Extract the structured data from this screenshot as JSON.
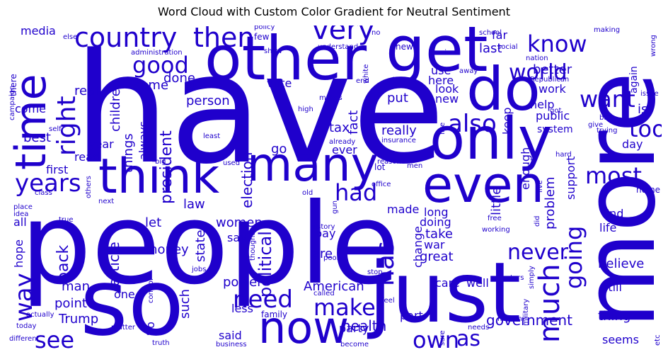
{
  "title": "Word Cloud with Custom Color Gradient for Neutral Sentiment",
  "colors": {
    "word": "#1f00cc",
    "background": "#ffffff",
    "title": "#000000"
  },
  "words": [
    "have",
    "people",
    "more",
    "so",
    "just",
    "other",
    "get",
    "do",
    "only",
    "time",
    "think",
    "many",
    "even",
    "now",
    "country",
    "then",
    "very",
    "know",
    "world",
    "want",
    "most",
    "also",
    "right",
    "good",
    "years",
    "need",
    "make",
    "going",
    "much",
    "never",
    "has",
    "had",
    "too",
    "way",
    "see",
    "own",
    "as",
    "government",
    "health",
    "American",
    "Trump",
    "political",
    "women",
    "election",
    "president",
    "law",
    "article",
    "back",
    "money",
    "power",
    "state",
    "things",
    "children",
    "done",
    "same",
    "real",
    "media",
    "first",
    "best",
    "read",
    "year",
    "come",
    "person",
    "vote",
    "fact",
    "tax",
    "really",
    "put",
    "new",
    "look",
    "use",
    "last",
    "far",
    "better",
    "work",
    "help",
    "public",
    "system",
    "day",
    "support",
    "problem",
    "enough",
    "keep",
    "little",
    "care",
    "well",
    "still",
    "thing",
    "seems",
    "believe",
    "life",
    "find",
    "take",
    "war",
    "change",
    "doing",
    "long",
    "made",
    "pay",
    "are",
    "say",
    "let",
    "party",
    "less",
    "said",
    "such",
    "So",
    "one",
    "man",
    "point",
    "all",
    "hope",
    "part",
    "family",
    "great",
    "is",
    "again",
    "here",
    "ever",
    "go",
    "always",
    "left",
    "administration",
    "Russian",
    "Republican",
    "nation",
    "school",
    "social",
    "news",
    "policy",
    "few",
    "else",
    "there",
    "no",
    "making",
    "wrong",
    "understand",
    "show",
    "makes",
    "high",
    "already",
    "insurance",
    "reason",
    "men",
    "office",
    "gun",
    "free",
    "working",
    "history",
    "thought",
    "poor",
    "stop",
    "voters",
    "called",
    "feel",
    "human",
    "military",
    "sure",
    "matter",
    "truth",
    "business",
    "become",
    "different",
    "today",
    "actually",
    "control",
    "jobs",
    "true",
    "next",
    "place",
    "idea",
    "class",
    "others",
    "used",
    "big",
    "least",
    "hard",
    "give",
    "trying",
    "issue",
    "bad",
    "got",
    "course",
    "like",
    "white",
    "end",
    "away",
    "old",
    "live",
    "home",
    "did",
    "simply",
    "needs",
    "etc",
    "campaign",
    "self",
    "lot",
    "%"
  ]
}
